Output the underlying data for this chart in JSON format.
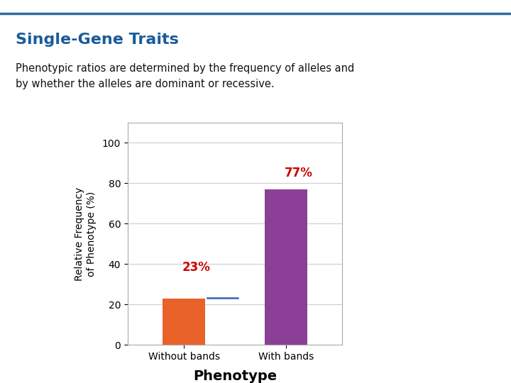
{
  "title": "Single-Gene Traits",
  "subtitle_line1": "Phenotypic ratios are determined by the frequency of alleles and",
  "subtitle_line2": "by whether the alleles are dominant or recessive.",
  "categories": [
    "Without bands",
    "With bands"
  ],
  "values": [
    23,
    77
  ],
  "bar_colors": [
    "#E8622A",
    "#8B3F96"
  ],
  "ylabel": "Relative Frequency\nof Phenotype (%)",
  "xlabel": "Phenotype",
  "ylim": [
    0,
    110
  ],
  "yticks": [
    0,
    20,
    40,
    60,
    80,
    100
  ],
  "title_color": "#1A5C99",
  "title_fontsize": 16,
  "subtitle_fontsize": 10.5,
  "axis_ylabel_fontsize": 10,
  "axis_xlabel_fontsize": 14,
  "tick_fontsize": 10,
  "annotation_fontsize": 12,
  "annotation_color": "#CC0000",
  "hline_color": "#4472C4",
  "hline_lw": 2.0,
  "background_color": "#FFFFFF",
  "top_line_color": "#2E6DA4",
  "grid_color": "#CCCCCC",
  "spine_color": "#AAAAAA"
}
